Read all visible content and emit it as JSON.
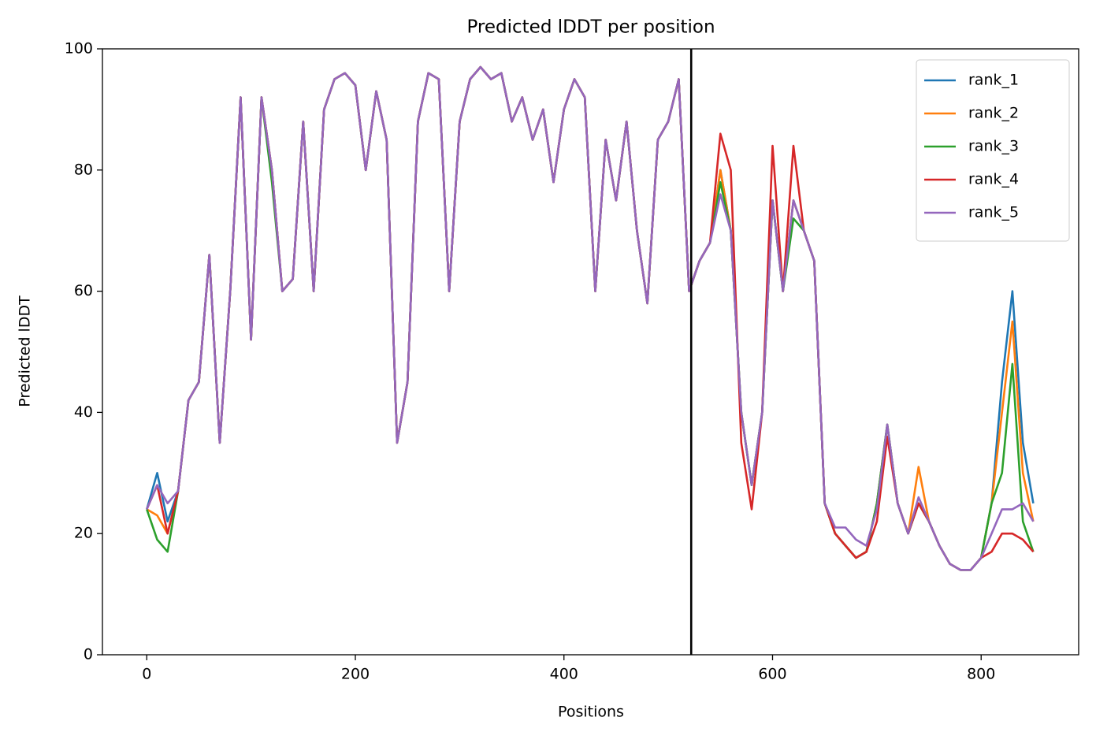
{
  "chart_data": {
    "type": "line",
    "title": "Predicted lDDT per position",
    "xlabel": "Positions",
    "ylabel": "Predicted lDDT",
    "x": [
      0,
      10,
      20,
      30,
      40,
      50,
      60,
      70,
      80,
      90,
      100,
      110,
      120,
      130,
      140,
      150,
      160,
      170,
      180,
      190,
      200,
      210,
      220,
      230,
      240,
      250,
      260,
      270,
      280,
      290,
      300,
      310,
      320,
      330,
      340,
      350,
      360,
      370,
      380,
      390,
      400,
      410,
      420,
      430,
      440,
      450,
      460,
      470,
      480,
      490,
      500,
      510,
      520,
      530,
      540,
      550,
      560,
      570,
      580,
      590,
      600,
      610,
      620,
      630,
      640,
      650,
      660,
      670,
      680,
      690,
      700,
      710,
      720,
      730,
      740,
      750,
      760,
      770,
      780,
      790,
      800,
      810,
      820,
      830,
      840,
      850
    ],
    "series": [
      {
        "name": "rank_1",
        "color": "#1f77b4",
        "values": [
          24,
          30,
          22,
          27,
          42,
          45,
          66,
          35,
          60,
          92,
          52,
          92,
          80,
          60,
          62,
          88,
          60,
          90,
          95,
          96,
          94,
          80,
          93,
          85,
          35,
          45,
          88,
          96,
          95,
          60,
          88,
          95,
          97,
          95,
          96,
          88,
          92,
          85,
          90,
          78,
          90,
          95,
          92,
          60,
          85,
          75,
          88,
          70,
          58,
          85,
          88,
          95,
          60,
          65,
          68,
          80,
          70,
          40,
          28,
          40,
          75,
          60,
          75,
          70,
          65,
          25,
          20,
          18,
          16,
          17,
          25,
          38,
          25,
          20,
          25,
          22,
          18,
          15,
          14,
          14,
          16,
          25,
          45,
          60,
          35,
          25
        ]
      },
      {
        "name": "rank_2",
        "color": "#ff7f0e",
        "values": [
          24,
          23,
          20,
          27,
          42,
          45,
          66,
          35,
          60,
          92,
          52,
          92,
          80,
          60,
          62,
          88,
          60,
          90,
          95,
          96,
          94,
          80,
          93,
          85,
          35,
          45,
          88,
          96,
          95,
          60,
          88,
          95,
          97,
          95,
          96,
          88,
          92,
          85,
          90,
          78,
          90,
          95,
          92,
          60,
          85,
          75,
          88,
          70,
          58,
          85,
          88,
          95,
          60,
          65,
          68,
          80,
          70,
          40,
          28,
          40,
          75,
          60,
          75,
          70,
          65,
          25,
          20,
          18,
          16,
          17,
          25,
          38,
          25,
          20,
          31,
          22,
          18,
          15,
          14,
          14,
          16,
          25,
          40,
          55,
          30,
          22
        ]
      },
      {
        "name": "rank_3",
        "color": "#2ca02c",
        "values": [
          24,
          19,
          17,
          27,
          42,
          45,
          66,
          35,
          60,
          92,
          52,
          92,
          78,
          60,
          62,
          88,
          60,
          90,
          95,
          96,
          94,
          80,
          93,
          85,
          35,
          45,
          88,
          96,
          95,
          60,
          88,
          95,
          97,
          95,
          96,
          88,
          92,
          85,
          90,
          78,
          90,
          95,
          92,
          60,
          85,
          75,
          88,
          70,
          58,
          85,
          88,
          95,
          60,
          65,
          68,
          78,
          70,
          40,
          28,
          40,
          75,
          60,
          72,
          70,
          65,
          25,
          20,
          18,
          16,
          17,
          25,
          38,
          25,
          20,
          25,
          22,
          18,
          15,
          14,
          14,
          16,
          25,
          30,
          48,
          22,
          17
        ]
      },
      {
        "name": "rank_4",
        "color": "#d62728",
        "values": [
          24,
          28,
          20,
          27,
          42,
          45,
          66,
          35,
          60,
          92,
          52,
          92,
          80,
          60,
          62,
          88,
          60,
          90,
          95,
          96,
          94,
          80,
          93,
          85,
          35,
          45,
          88,
          96,
          95,
          60,
          88,
          95,
          97,
          95,
          96,
          88,
          92,
          85,
          90,
          78,
          90,
          95,
          92,
          60,
          85,
          75,
          88,
          70,
          58,
          85,
          88,
          95,
          60,
          65,
          68,
          86,
          80,
          35,
          24,
          40,
          84,
          60,
          84,
          70,
          65,
          25,
          20,
          18,
          16,
          17,
          22,
          36,
          25,
          20,
          25,
          22,
          18,
          15,
          14,
          14,
          16,
          17,
          20,
          20,
          19,
          17
        ]
      },
      {
        "name": "rank_5",
        "color": "#9467bd",
        "values": [
          24,
          28,
          25,
          27,
          42,
          45,
          66,
          35,
          60,
          92,
          52,
          92,
          80,
          60,
          62,
          88,
          60,
          90,
          95,
          96,
          94,
          80,
          93,
          85,
          35,
          45,
          88,
          96,
          95,
          60,
          88,
          95,
          97,
          95,
          96,
          88,
          92,
          85,
          90,
          78,
          90,
          95,
          92,
          60,
          85,
          75,
          88,
          70,
          58,
          85,
          88,
          95,
          60,
          65,
          68,
          76,
          70,
          40,
          28,
          40,
          75,
          60,
          75,
          70,
          65,
          25,
          21,
          21,
          19,
          18,
          24,
          38,
          25,
          20,
          26,
          22,
          18,
          15,
          14,
          14,
          16,
          20,
          24,
          24,
          25,
          22
        ]
      }
    ],
    "vline": 522,
    "xlim": [
      -42.5,
      893.5
    ],
    "xticks": [
      0,
      200,
      400,
      600,
      800
    ],
    "ylim": [
      0,
      100
    ],
    "yticks": [
      0,
      20,
      40,
      60,
      80,
      100
    ],
    "legend": "upper right"
  }
}
